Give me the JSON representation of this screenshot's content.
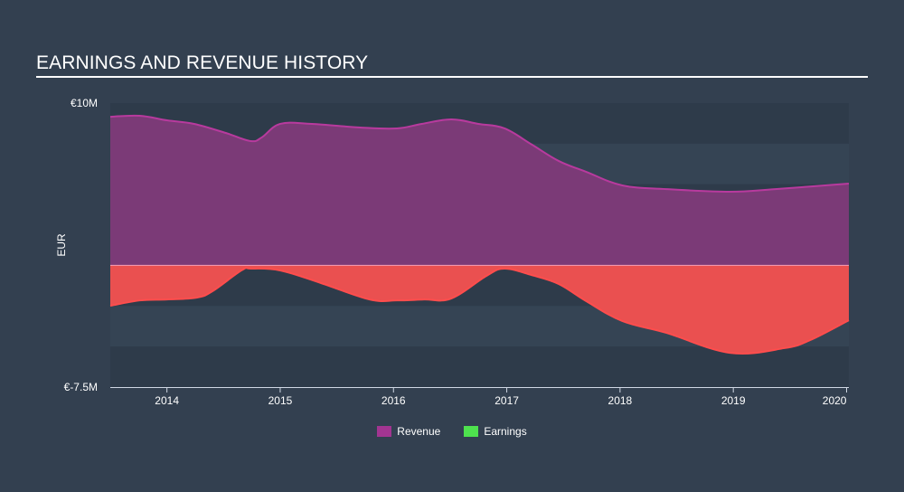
{
  "title": "EARNINGS AND REVENUE HISTORY",
  "colors": {
    "background": "#334050",
    "band_dark": "#2e3b4a",
    "band_light": "#354454",
    "revenue_fill": "#7b3a77",
    "revenue_line": "#b83a9e",
    "earnings_fill": "#ea5050",
    "earnings_line": "#ff4d4d",
    "revenue_legend": "#a23591",
    "earnings_legend": "#4ee24e",
    "axis": "#d0d8e4"
  },
  "yaxis": {
    "label": "EUR",
    "top_label": "€10M",
    "bottom_label": "€-7.5M"
  },
  "legend": [
    {
      "label": "Revenue",
      "color": "#a23591"
    },
    {
      "label": "Earnings",
      "color": "#4ee24e"
    }
  ],
  "chart_data": {
    "type": "area",
    "title": "EARNINGS AND REVENUE HISTORY",
    "xlabel": "",
    "ylabel": "EUR",
    "ylim": [
      -7.5,
      10
    ],
    "yunit": "€M",
    "xlim": [
      2013.5,
      2020.02
    ],
    "xticks": [
      "2014",
      "2015",
      "2016",
      "2017",
      "2018",
      "2019",
      "2020"
    ],
    "ytick_labels": [
      "€10M",
      "€-7.5M"
    ],
    "legend_position": "bottom-center",
    "grid": "alternating horizontal bands every 2.5M",
    "series": [
      {
        "name": "Revenue",
        "x": [
          2013.5,
          2013.76,
          2014.0,
          2014.24,
          2014.52,
          2014.74,
          2014.84,
          2015.0,
          2015.28,
          2015.72,
          2016.03,
          2016.25,
          2016.51,
          2016.75,
          2016.98,
          2017.22,
          2017.46,
          2017.7,
          2018.02,
          2018.41,
          2018.97,
          2019.37,
          2020.02
        ],
        "values": [
          9.16,
          9.22,
          8.94,
          8.72,
          8.16,
          7.66,
          7.9,
          8.72,
          8.72,
          8.49,
          8.44,
          8.72,
          9.0,
          8.72,
          8.44,
          7.45,
          6.43,
          5.77,
          4.93,
          4.7,
          4.54,
          4.7,
          5.04
        ]
      },
      {
        "name": "Earnings",
        "x": [
          2013.5,
          2013.76,
          2014.0,
          2014.26,
          2014.4,
          2014.66,
          2014.74,
          2015.0,
          2015.36,
          2015.79,
          2016.03,
          2016.27,
          2016.51,
          2016.82,
          2016.98,
          2017.22,
          2017.46,
          2017.7,
          2018.02,
          2018.41,
          2018.97,
          2019.45,
          2019.68,
          2020.02
        ],
        "values": [
          -2.49,
          -2.16,
          -2.1,
          -1.99,
          -1.6,
          -0.3,
          -0.2,
          -0.31,
          -1.09,
          -2.1,
          -2.16,
          -2.1,
          -2.04,
          -0.65,
          -0.2,
          -0.6,
          -1.15,
          -2.2,
          -3.43,
          -4.16,
          -5.39,
          -5.1,
          -4.6,
          -3.38
        ]
      }
    ]
  }
}
